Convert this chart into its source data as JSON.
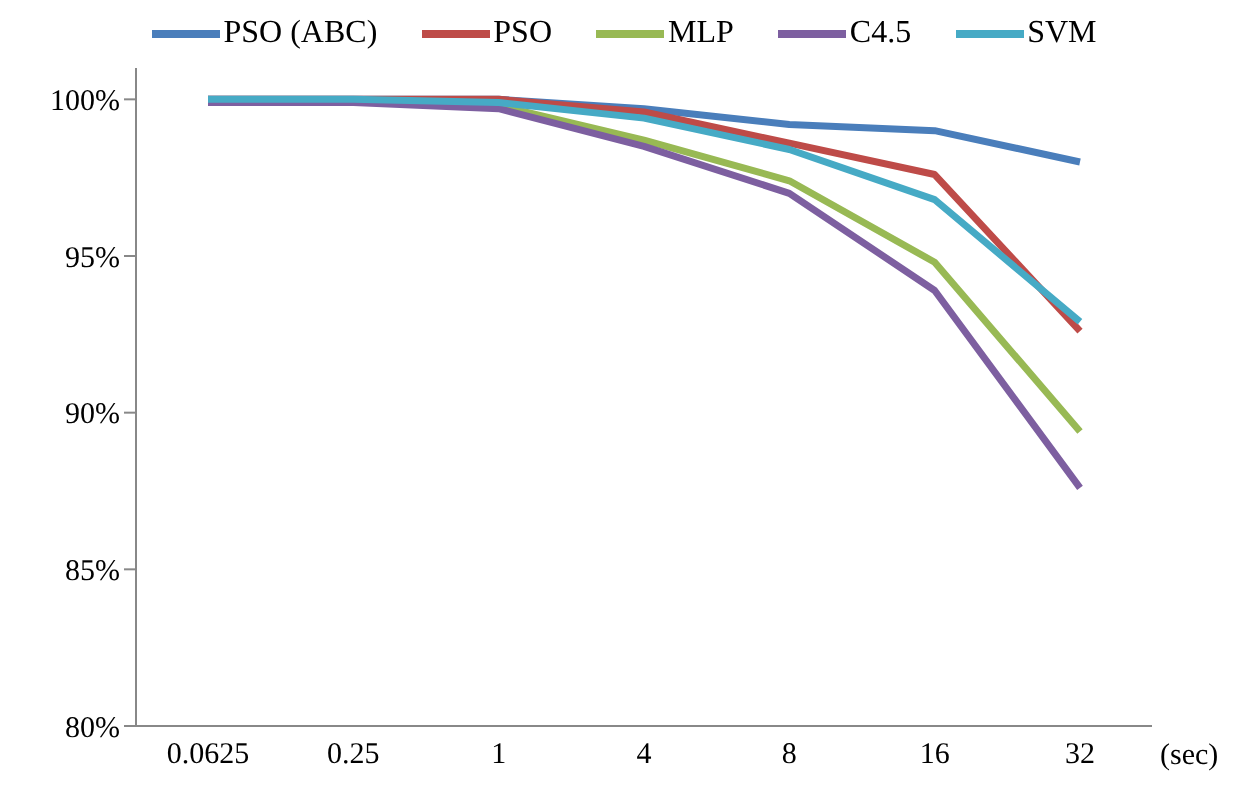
{
  "chart_data": {
    "type": "line",
    "xlabel": "(sec)",
    "categories": [
      "0.0625",
      "0.25",
      "1",
      "4",
      "8",
      "16",
      "32"
    ],
    "series": [
      {
        "name": "PSO (ABC)",
        "color": "#4a7ebb",
        "values": [
          100,
          100,
          100,
          99.7,
          99.2,
          99.0,
          98.0
        ]
      },
      {
        "name": "PSO",
        "color": "#be4b48",
        "values": [
          100,
          100,
          100,
          99.6,
          98.6,
          97.6,
          92.6
        ]
      },
      {
        "name": "MLP",
        "color": "#98b954",
        "values": [
          null,
          null,
          99.8,
          98.7,
          97.4,
          94.8,
          89.4
        ]
      },
      {
        "name": "C4.5",
        "color": "#7d5fa0",
        "values": [
          99.9,
          99.9,
          99.7,
          98.5,
          97.0,
          93.9,
          87.6
        ]
      },
      {
        "name": "SVM",
        "color": "#46aac5",
        "values": [
          100,
          100,
          99.9,
          99.4,
          98.4,
          96.8,
          92.9
        ]
      }
    ],
    "ylim": [
      80,
      101
    ],
    "yticks": [
      {
        "value": 80,
        "label": "80%"
      },
      {
        "value": 85,
        "label": "85%"
      },
      {
        "value": 90,
        "label": "90%"
      },
      {
        "value": 95,
        "label": "95%"
      },
      {
        "value": 100,
        "label": "100%"
      }
    ],
    "grid": false,
    "legend": "top",
    "marker": "none",
    "line_style": "solid"
  }
}
